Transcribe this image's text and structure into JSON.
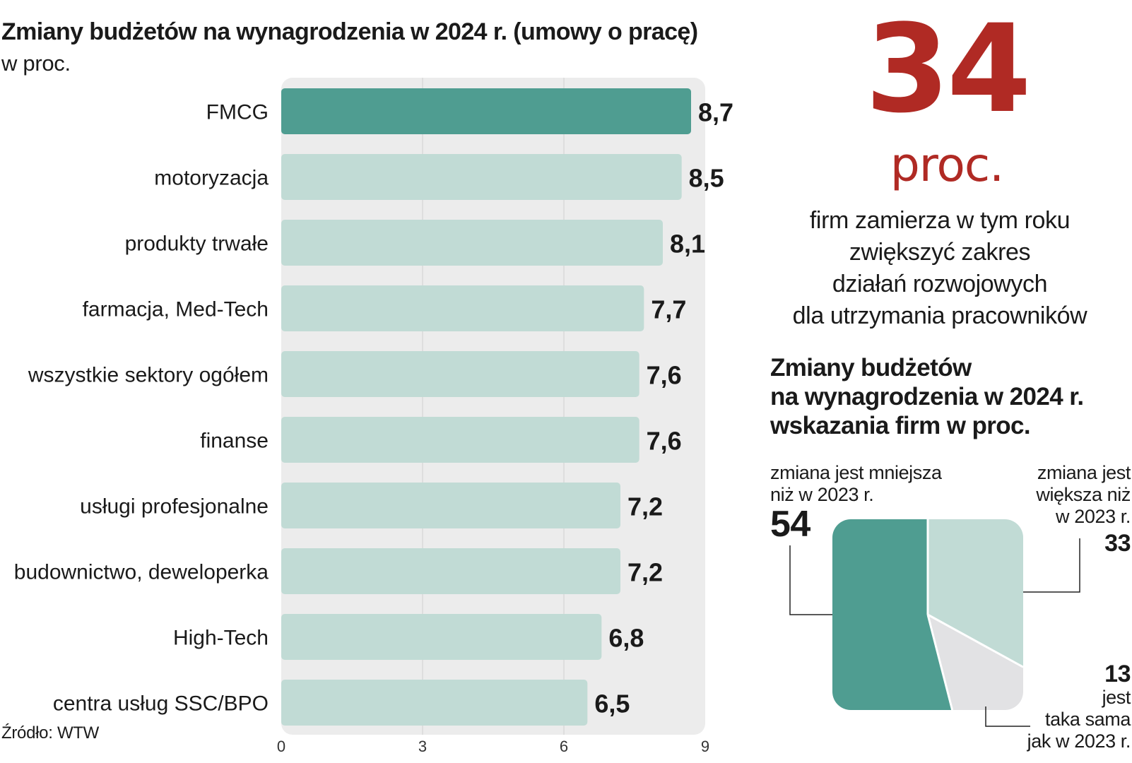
{
  "left_chart": {
    "title": "Zmiany budżetów na wynagrodzenia w 2024 r. (umowy o pracę)",
    "subtitle": "w proc.",
    "source": "Źródło: WTW"
  },
  "highlight": {
    "number": "34",
    "unit": "proc.",
    "description": [
      "firm zamierza w tym roku",
      "zwiększyć zakres",
      "działań rozwojowych",
      "dla utrzymania pracowników"
    ]
  },
  "right_chart": {
    "title_lines": [
      "Zmiany budżetów",
      "na wynagrodzenia w 2024 r.",
      "wskazania firm w proc."
    ],
    "slice_labels": {
      "less": [
        "zmiana jest mniejsza",
        "niż w 2023 r."
      ],
      "more": [
        "zmiana jest",
        "większa niż",
        "w 2023 r."
      ],
      "same": [
        "jest",
        "taka sama",
        "jak w 2023 r."
      ]
    },
    "slice_values": {
      "less": "54",
      "more": "33",
      "same": "13"
    }
  },
  "colors": {
    "highlight_bar": "#4f9d91",
    "bar": "#c1dbd5",
    "plot_bg": "#ececec",
    "accent_red": "#b02a24",
    "pie_less": "#4f9d91",
    "pie_more": "#c1dbd5",
    "pie_same": "#e2e2e4"
  },
  "chart_data": [
    {
      "type": "bar",
      "orientation": "horizontal",
      "title": "Zmiany budżetów na wynagrodzenia w 2024 r. (umowy o pracę)",
      "subtitle": "w proc.",
      "categories": [
        "FMCG",
        "motoryzacja",
        "produkty trwałe",
        "farmacja, Med-Tech",
        "wszystkie sektory ogółem",
        "finanse",
        "usługi profesjonalne",
        "budownictwo, deweloperka",
        "High-Tech",
        "centra usług SSC/BPO"
      ],
      "values": [
        8.7,
        8.5,
        8.1,
        7.7,
        7.6,
        7.6,
        7.2,
        7.2,
        6.8,
        6.5
      ],
      "value_labels": [
        "8,7",
        "8,5",
        "8,1",
        "7,7",
        "7,6",
        "7,6",
        "7,2",
        "7,2",
        "6,8",
        "6,5"
      ],
      "highlighted_category": "FMCG",
      "xlim": [
        0,
        9
      ],
      "xticks": [
        0,
        3,
        6,
        9
      ],
      "xtick_labels": [
        "0",
        "3",
        "6",
        "9"
      ],
      "grid": true
    },
    {
      "type": "pie",
      "title": "Zmiany budżetów na wynagrodzenia w 2024 r. wskazania firm w proc.",
      "shape": "rounded-square",
      "categories": [
        "zmiana jest mniejsza niż w 2023 r.",
        "zmiana jest większa niż w 2023 r.",
        "jest taka sama jak w 2023 r."
      ],
      "values": [
        54,
        33,
        13
      ]
    }
  ]
}
